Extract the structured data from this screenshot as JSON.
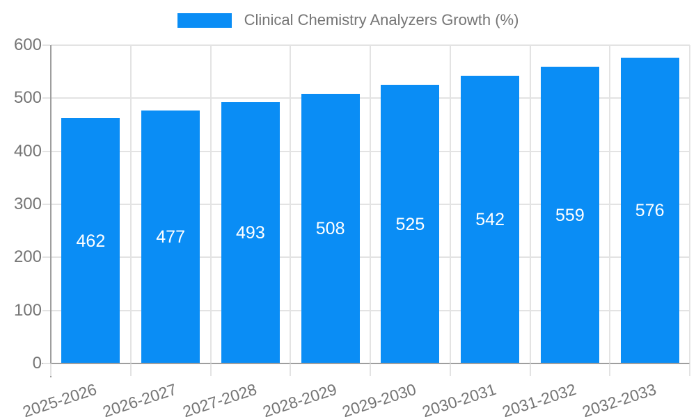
{
  "chart_data": {
    "type": "bar",
    "title": "Clinical Chemistry Analyzers Growth (%)",
    "legend": {
      "position": "top",
      "label": "Clinical Chemistry Analyzers Growth (%)"
    },
    "categories": [
      "2025-2026",
      "2026-2027",
      "2027-2028",
      "2028-2029",
      "2029-2030",
      "2030-2031",
      "2031-2032",
      "2032-2033"
    ],
    "series": [
      {
        "name": "Clinical Chemistry Analyzers Growth (%)",
        "values": [
          462,
          477,
          493,
          508,
          525,
          542,
          559,
          576
        ]
      }
    ],
    "value_labels_shown": true,
    "xlabel": "",
    "ylabel": "",
    "ylim": [
      0,
      600
    ],
    "yticks": [
      0,
      100,
      200,
      300,
      400,
      500,
      600
    ],
    "grid": true,
    "x_label_rotation_deg": -18,
    "colors": {
      "bar": "#0A8DF5",
      "value_label": "#ffffff",
      "axis_text": "#757575",
      "gridline": "#e3e3e3",
      "axis_line": "#9e9e9e"
    }
  }
}
